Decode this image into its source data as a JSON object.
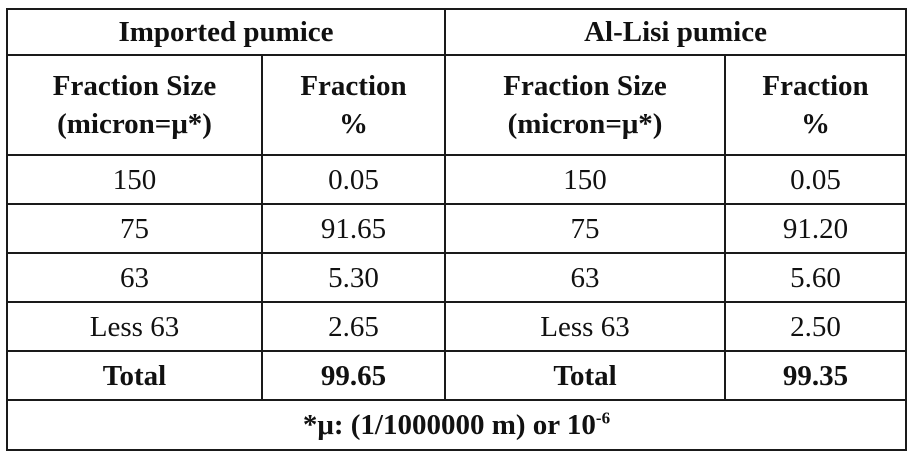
{
  "table": {
    "group_headers": [
      "Imported pumice",
      "Al-Lisi pumice"
    ],
    "column_headers": {
      "size_line1": "Fraction Size",
      "size_line2": "(micron=μ*)",
      "fraction_line1": "Fraction",
      "fraction_line2": "%"
    },
    "rows": [
      [
        "150",
        "0.05",
        "150",
        "0.05"
      ],
      [
        "75",
        "91.65",
        "75",
        "91.20"
      ],
      [
        "63",
        "5.30",
        "63",
        "5.60"
      ],
      [
        "Less 63",
        "2.65",
        "Less 63",
        "2.50"
      ]
    ],
    "total_row": [
      "Total",
      "99.65",
      "Total",
      "99.35"
    ],
    "footnote": {
      "text": "*μ: (1/1000000 m) or 10",
      "superscript": "-6"
    }
  }
}
